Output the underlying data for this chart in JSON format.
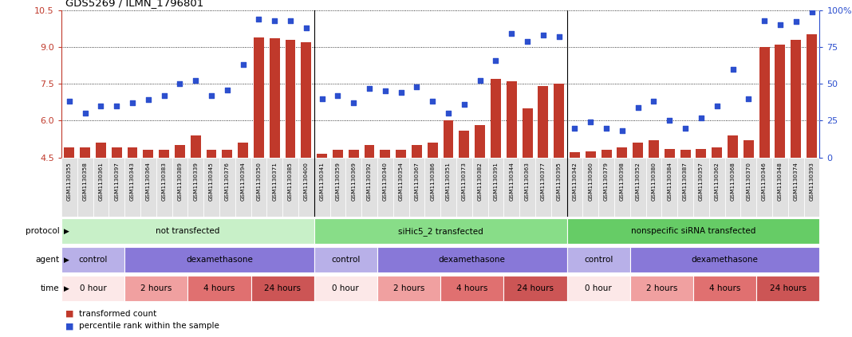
{
  "title": "GDS5269 / ILMN_1796801",
  "sample_ids": [
    "GSM1130355",
    "GSM1130358",
    "GSM1130361",
    "GSM1130397",
    "GSM1130343",
    "GSM1130364",
    "GSM1130383",
    "GSM1130389",
    "GSM1130339",
    "GSM1130345",
    "GSM1130376",
    "GSM1130394",
    "GSM1130350",
    "GSM1130371",
    "GSM1130385",
    "GSM1130400",
    "GSM1130341",
    "GSM1130359",
    "GSM1130369",
    "GSM1130392",
    "GSM1130340",
    "GSM1130354",
    "GSM1130367",
    "GSM1130386",
    "GSM1130351",
    "GSM1130373",
    "GSM1130382",
    "GSM1130391",
    "GSM1130344",
    "GSM1130363",
    "GSM1130377",
    "GSM1130395",
    "GSM1130342",
    "GSM1130360",
    "GSM1130379",
    "GSM1130398",
    "GSM1130352",
    "GSM1130380",
    "GSM1130384",
    "GSM1130387",
    "GSM1130357",
    "GSM1130362",
    "GSM1130368",
    "GSM1130370",
    "GSM1130346",
    "GSM1130348",
    "GSM1130374",
    "GSM1130393"
  ],
  "bar_values": [
    4.9,
    4.9,
    5.1,
    4.9,
    4.9,
    4.8,
    4.8,
    5.0,
    5.4,
    4.8,
    4.8,
    5.1,
    9.4,
    9.35,
    9.3,
    9.2,
    4.65,
    4.8,
    4.8,
    5.0,
    4.8,
    4.8,
    5.0,
    5.1,
    6.0,
    5.6,
    5.8,
    7.7,
    7.6,
    6.5,
    7.4,
    7.5,
    4.7,
    4.75,
    4.8,
    4.9,
    5.1,
    5.2,
    4.85,
    4.8,
    4.85,
    4.9,
    5.4,
    5.2,
    9.0,
    9.1,
    9.3,
    9.5
  ],
  "dot_values": [
    38,
    30,
    35,
    35,
    37,
    39,
    42,
    50,
    52,
    42,
    46,
    63,
    94,
    93,
    93,
    88,
    40,
    42,
    37,
    47,
    45,
    44,
    48,
    38,
    30,
    36,
    52,
    66,
    84,
    79,
    83,
    82,
    20,
    24,
    20,
    18,
    34,
    38,
    25,
    20,
    27,
    35,
    60,
    40,
    93,
    90,
    92,
    99
  ],
  "ylim_left": [
    4.5,
    10.5
  ],
  "ylim_right": [
    0,
    100
  ],
  "yticks_left": [
    4.5,
    6.0,
    7.5,
    9.0,
    10.5
  ],
  "yticks_right": [
    0,
    25,
    50,
    75,
    100
  ],
  "bar_color": "#c0392b",
  "dot_color": "#2c4fce",
  "bg_color": "#e8e8e8",
  "protocol_groups": [
    {
      "label": "not transfected",
      "start": 0,
      "end": 16,
      "color": "#c8f0c8"
    },
    {
      "label": "siHic5_2 transfected",
      "start": 16,
      "end": 32,
      "color": "#88dd88"
    },
    {
      "label": "nonspecific siRNA transfected",
      "start": 32,
      "end": 48,
      "color": "#66cc66"
    }
  ],
  "agent_groups": [
    {
      "label": "control",
      "start": 0,
      "end": 4,
      "color": "#b8b0e8"
    },
    {
      "label": "dexamethasone",
      "start": 4,
      "end": 16,
      "color": "#8878d8"
    },
    {
      "label": "control",
      "start": 16,
      "end": 20,
      "color": "#b8b0e8"
    },
    {
      "label": "dexamethasone",
      "start": 20,
      "end": 32,
      "color": "#8878d8"
    },
    {
      "label": "control",
      "start": 32,
      "end": 36,
      "color": "#b8b0e8"
    },
    {
      "label": "dexamethasone",
      "start": 36,
      "end": 48,
      "color": "#8878d8"
    }
  ],
  "time_groups": [
    {
      "label": "0 hour",
      "start": 0,
      "end": 4,
      "color": "#fce8e8"
    },
    {
      "label": "2 hours",
      "start": 4,
      "end": 8,
      "color": "#f0a0a0"
    },
    {
      "label": "4 hours",
      "start": 8,
      "end": 12,
      "color": "#e07070"
    },
    {
      "label": "24 hours",
      "start": 12,
      "end": 16,
      "color": "#cc5555"
    },
    {
      "label": "0 hour",
      "start": 16,
      "end": 20,
      "color": "#fce8e8"
    },
    {
      "label": "2 hours",
      "start": 20,
      "end": 24,
      "color": "#f0a0a0"
    },
    {
      "label": "4 hours",
      "start": 24,
      "end": 28,
      "color": "#e07070"
    },
    {
      "label": "24 hours",
      "start": 28,
      "end": 32,
      "color": "#cc5555"
    },
    {
      "label": "0 hour",
      "start": 32,
      "end": 36,
      "color": "#fce8e8"
    },
    {
      "label": "2 hours",
      "start": 36,
      "end": 40,
      "color": "#f0a0a0"
    },
    {
      "label": "4 hours",
      "start": 40,
      "end": 44,
      "color": "#e07070"
    },
    {
      "label": "24 hours",
      "start": 44,
      "end": 48,
      "color": "#cc5555"
    }
  ],
  "legend_items": [
    {
      "label": "transformed count",
      "color": "#c0392b"
    },
    {
      "label": "percentile rank within the sample",
      "color": "#2c4fce"
    }
  ],
  "row_labels": [
    "protocol",
    "agent",
    "time"
  ],
  "row_arrow": "▶"
}
